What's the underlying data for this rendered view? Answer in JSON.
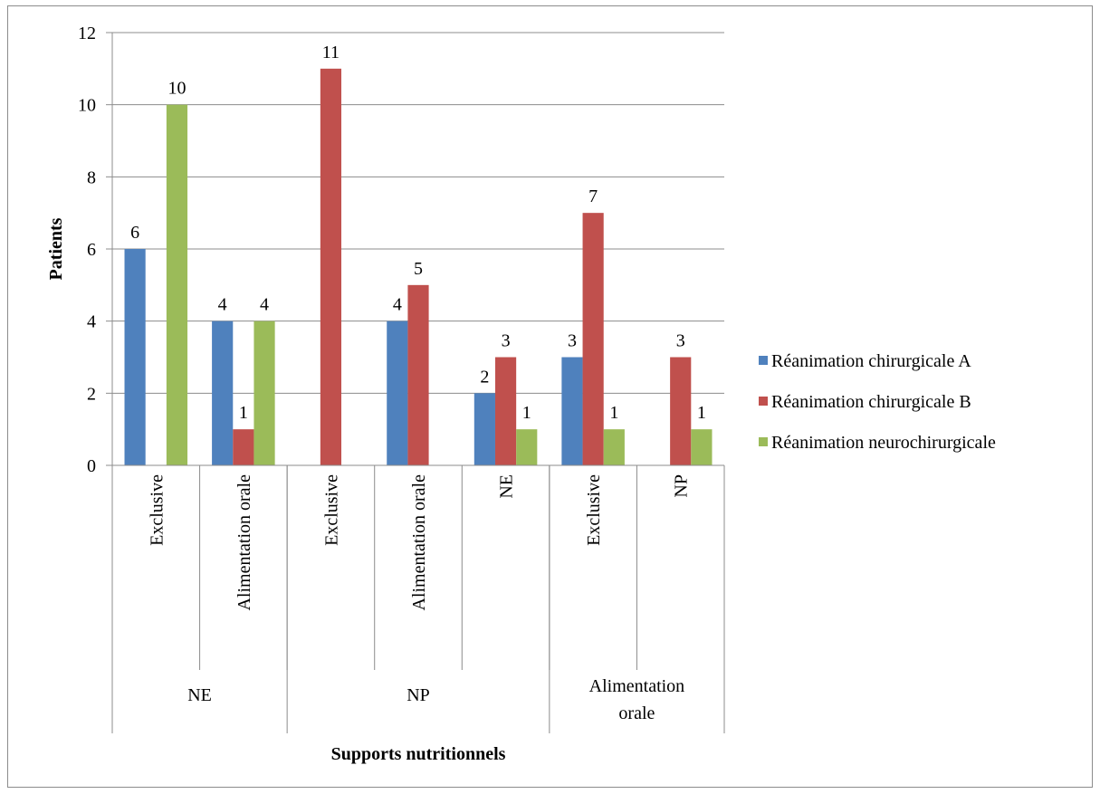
{
  "chart_data": {
    "type": "bar",
    "title": "",
    "xlabel": "Supports nutritionnels",
    "ylabel": "Patients",
    "ylim": [
      0,
      12
    ],
    "yticks": [
      0,
      2,
      4,
      6,
      8,
      10,
      12
    ],
    "grid": true,
    "legend_position": "right",
    "groups": [
      {
        "label": [
          "NE"
        ],
        "categories": [
          "Exclusive",
          "Alimentation orale"
        ]
      },
      {
        "label": [
          "NP"
        ],
        "categories": [
          "Exclusive",
          "Alimentation orale",
          "NE"
        ]
      },
      {
        "label": [
          "Alimentation",
          "orale"
        ],
        "categories": [
          "Exclusive",
          "NP"
        ]
      }
    ],
    "series": [
      {
        "name": "Réanimation chirurgicale A",
        "color": "#4F81BD",
        "values": [
          6,
          4,
          null,
          4,
          2,
          3,
          null
        ]
      },
      {
        "name": "Réanimation chirurgicale B",
        "color": "#C0504D",
        "values": [
          null,
          1,
          11,
          5,
          3,
          7,
          3
        ]
      },
      {
        "name": "Réanimation neurochirurgicale",
        "color": "#9BBB59",
        "values": [
          10,
          4,
          null,
          null,
          1,
          1,
          1
        ]
      }
    ]
  }
}
